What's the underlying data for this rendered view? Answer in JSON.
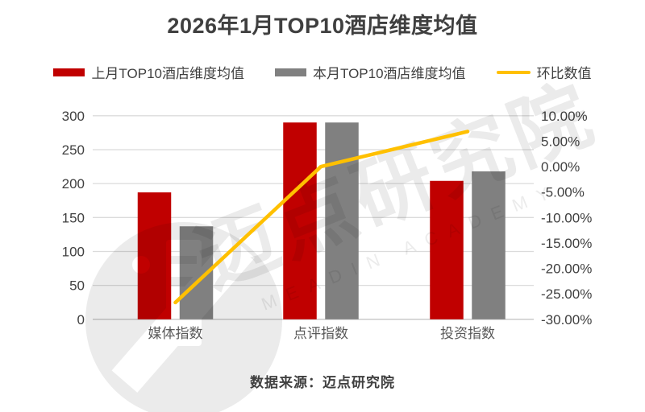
{
  "title": "2026年1月TOP10酒店维度均值",
  "legend": [
    {
      "label": "上月TOP10酒店维度均值",
      "color": "#C00000",
      "type": "swatch"
    },
    {
      "label": "本月TOP10酒店维度均值",
      "color": "#808080",
      "type": "swatch"
    },
    {
      "label": "环比数值",
      "color": "#FFC000",
      "type": "line"
    }
  ],
  "source": {
    "text": "数据来源：迈点研究院"
  },
  "watermark": {
    "text": "迈点研究院",
    "latin": "MEADIN ACADEMY"
  },
  "colors": {
    "bar_prev": "#C00000",
    "bar_current": "#808080",
    "trend_line": "#FFC000",
    "gridline": "#DBDBDB",
    "axis_line": "#C6C6C6",
    "tick_text": "#404040",
    "category_text": "#595959"
  },
  "chart_data": {
    "type": "bar",
    "title": "2026年1月TOP10酒店维度均值",
    "categories": [
      "媒体指数",
      "点评指数",
      "投资指数"
    ],
    "series": [
      {
        "name": "上月TOP10酒店维度均值",
        "type": "bar",
        "color": "#C00000",
        "values": [
          187,
          290,
          204
        ]
      },
      {
        "name": "本月TOP10酒店维度均值",
        "type": "bar",
        "color": "#808080",
        "values": [
          137,
          290,
          218
        ]
      },
      {
        "name": "环比数值",
        "type": "line",
        "color": "#FFC000",
        "values_pct": [
          -26.7,
          0.0,
          6.9
        ]
      }
    ],
    "left_axis": {
      "min": 0,
      "max": 300,
      "step": 50,
      "ticks": [
        "300",
        "250",
        "200",
        "150",
        "100",
        "50",
        "0"
      ]
    },
    "right_axis": {
      "min": -30,
      "max": 10,
      "step": 5,
      "ticks": [
        "10.00%",
        "5.00%",
        "0.00%",
        "-5.00%",
        "-10.00%",
        "-15.00%",
        "-20.00%",
        "-25.00%",
        "-30.00%"
      ]
    },
    "grid": true,
    "legend_position": "top",
    "xlabel": "",
    "ylabel": ""
  }
}
